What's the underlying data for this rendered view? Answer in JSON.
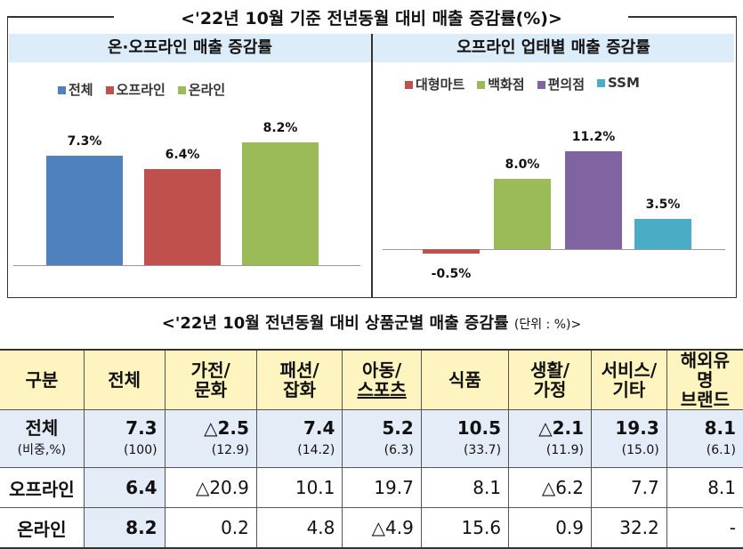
{
  "title": "<'22년 10월 기준 전년동월 대비 매출 증감률(%)>",
  "chart_data": [
    {
      "type": "bar",
      "title": "온·오프라인 매출 증감률",
      "categories": [
        "전체",
        "오프라인",
        "온라인"
      ],
      "values": [
        7.3,
        6.4,
        8.2
      ],
      "labels": [
        "7.3%",
        "6.4%",
        "8.2%"
      ],
      "colors": [
        "#4f81bd",
        "#c0504d",
        "#9bbb59"
      ],
      "legend": [
        "전체",
        "오프라인",
        "온라인"
      ],
      "legend_position": "top",
      "ylim": [
        0,
        9
      ]
    },
    {
      "type": "bar",
      "title": "오프라인 업태별 매출 증감률",
      "categories": [
        "대형마트",
        "백화점",
        "편의점",
        "SSM"
      ],
      "values": [
        -0.5,
        8.0,
        11.2,
        3.5
      ],
      "labels": [
        "-0.5%",
        "8.0%",
        "11.2%",
        "3.5%"
      ],
      "colors": [
        "#c0504d",
        "#9bbb59",
        "#8064a2",
        "#4bacc6"
      ],
      "legend": [
        "대형마트",
        "백화점",
        "편의점",
        "SSM"
      ],
      "legend_position": "top",
      "ylim": [
        -1,
        12
      ]
    }
  ],
  "table": {
    "title": "<'22년 10월 전년동월 대비 상품군별 매출 증감률",
    "unit": "(단위 : %)>",
    "headers": [
      [
        "구분"
      ],
      [
        "전체"
      ],
      [
        "가전/",
        "문화"
      ],
      [
        "패션/",
        "잡화"
      ],
      [
        "아동/",
        "스포츠"
      ],
      [
        "식품"
      ],
      [
        "생활/",
        "가정"
      ],
      [
        "서비스/",
        "기타"
      ],
      [
        "해외유명",
        "브랜드"
      ]
    ],
    "total": {
      "label": "전체",
      "sublabel": "(비중,%)",
      "values": [
        "7.3",
        "△2.5",
        "7.4",
        "5.2",
        "10.5",
        "△2.1",
        "19.3",
        "8.1"
      ],
      "shares": [
        "(100)",
        "(12.9)",
        "(14.2)",
        "(6.3)",
        "(33.7)",
        "(11.9)",
        "(15.0)",
        "(6.1)"
      ]
    },
    "rows": [
      {
        "label": "오프라인",
        "values": [
          "6.4",
          "△20.9",
          "10.1",
          "19.7",
          "8.1",
          "△6.2",
          "7.7",
          "8.1"
        ]
      },
      {
        "label": "온라인",
        "values": [
          "8.2",
          "0.2",
          "4.8",
          "△4.9",
          "15.6",
          "0.9",
          "32.2",
          "-"
        ]
      }
    ]
  }
}
